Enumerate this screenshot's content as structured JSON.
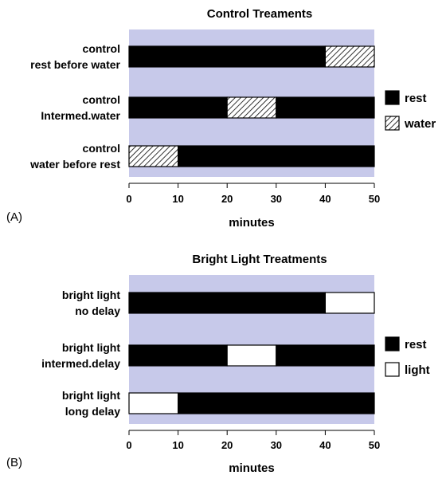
{
  "chart_data": [
    {
      "type": "bar",
      "subtype": "horizontal-stacked-timeline",
      "panel_label": "(A)",
      "title": "Control Treaments",
      "xlabel": "minutes",
      "ylabel": "",
      "xlim": [
        0,
        50
      ],
      "xticks": [
        "0",
        "10",
        "20",
        "30",
        "40",
        "50"
      ],
      "grid": false,
      "legend_position": "right",
      "colors": {
        "plot_bg": "#c7c9ea",
        "rest": "#000000",
        "other": "#ffffff"
      },
      "legend": [
        {
          "key": "rest",
          "label": "rest",
          "fill": "solid-black"
        },
        {
          "key": "water",
          "label": "water",
          "fill": "hatched"
        }
      ],
      "rows": [
        {
          "label_lines": [
            "control",
            "rest before water"
          ],
          "segments": [
            {
              "key": "rest",
              "start": 0,
              "end": 40
            },
            {
              "key": "water",
              "start": 40,
              "end": 50
            }
          ]
        },
        {
          "label_lines": [
            "control",
            "Intermed.water"
          ],
          "segments": [
            {
              "key": "rest",
              "start": 0,
              "end": 20
            },
            {
              "key": "water",
              "start": 20,
              "end": 30
            },
            {
              "key": "rest",
              "start": 30,
              "end": 50
            }
          ]
        },
        {
          "label_lines": [
            "control",
            "water before rest"
          ],
          "segments": [
            {
              "key": "water",
              "start": 0,
              "end": 10
            },
            {
              "key": "rest",
              "start": 10,
              "end": 50
            }
          ]
        }
      ]
    },
    {
      "type": "bar",
      "subtype": "horizontal-stacked-timeline",
      "panel_label": "(B)",
      "title": "Bright Light Treatments",
      "xlabel": "minutes",
      "ylabel": "",
      "xlim": [
        0,
        50
      ],
      "xticks": [
        "0",
        "10",
        "20",
        "30",
        "40",
        "50"
      ],
      "grid": false,
      "legend_position": "right",
      "colors": {
        "plot_bg": "#c7c9ea",
        "rest": "#000000",
        "other": "#ffffff"
      },
      "legend": [
        {
          "key": "rest",
          "label": "rest",
          "fill": "solid-black"
        },
        {
          "key": "light",
          "label": "light",
          "fill": "white"
        }
      ],
      "rows": [
        {
          "label_lines": [
            "bright light",
            "no delay"
          ],
          "segments": [
            {
              "key": "rest",
              "start": 0,
              "end": 40
            },
            {
              "key": "light",
              "start": 40,
              "end": 50
            }
          ]
        },
        {
          "label_lines": [
            "bright light",
            "intermed.delay"
          ],
          "segments": [
            {
              "key": "rest",
              "start": 0,
              "end": 20
            },
            {
              "key": "light",
              "start": 20,
              "end": 30
            },
            {
              "key": "rest",
              "start": 30,
              "end": 50
            }
          ]
        },
        {
          "label_lines": [
            "bright light",
            "long delay"
          ],
          "segments": [
            {
              "key": "light",
              "start": 0,
              "end": 10
            },
            {
              "key": "rest",
              "start": 10,
              "end": 50
            }
          ]
        }
      ]
    }
  ]
}
